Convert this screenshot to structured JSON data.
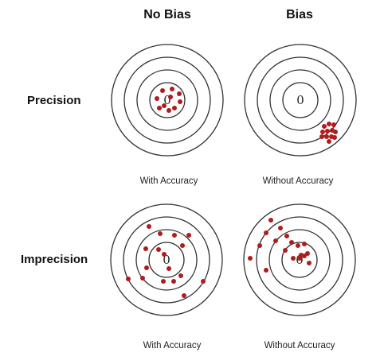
{
  "columns": {
    "no_bias": "No Bias",
    "bias": "Bias"
  },
  "rows": {
    "precision": "Precision",
    "imprecision": "Imprecision"
  },
  "captions": {
    "top_left": "With Accuracy",
    "top_right": "Without Accuracy",
    "bottom_left": "With Accuracy",
    "bottom_right": "Without Accuracy"
  },
  "center_label": "0",
  "colors": {
    "dot": "#b01c1c",
    "ring": "#333333"
  }
}
